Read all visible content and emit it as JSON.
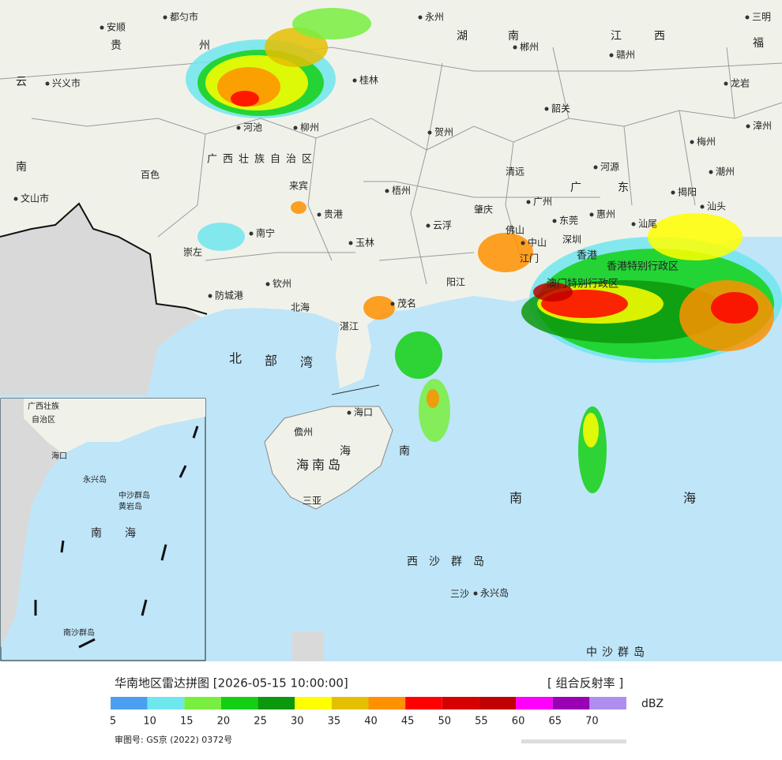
{
  "map": {
    "labels": [
      "安顺",
      "都匀市",
      "永州",
      "三明",
      "贵",
      "州",
      "湖",
      "南",
      "江",
      "西",
      "福",
      "郴州",
      "赣州",
      "云",
      "兴义市",
      "桂林",
      "龙岩",
      "河池",
      "柳州",
      "韶关",
      "漳州",
      "贺州",
      "梅州",
      "南",
      "百色",
      "广西壮族自治区",
      "清远",
      "河源",
      "潮州",
      "来宾",
      "梧州",
      "广",
      "东",
      "揭阳",
      "文山市",
      "贵港",
      "广州",
      "肇庆",
      "东莞",
      "惠州",
      "汕头",
      "南宁",
      "云浮",
      "佛山",
      "玉林",
      "深圳",
      "汕尾",
      "崇左",
      "中山",
      "香港",
      "香港特别行政区",
      "钦州",
      "江门",
      "阳江",
      "澳门特别行政区",
      "防城港",
      "北海",
      "茂名",
      "湛江",
      "北",
      "部",
      "湾",
      "海口",
      "儋州",
      "海",
      "南",
      "海南岛",
      "三亚",
      "南",
      "海",
      "西沙群岛",
      "三沙",
      "永兴岛",
      "中沙群岛"
    ],
    "inset_labels": [
      "广西壮族",
      "自治区",
      "海口",
      "南",
      "海",
      "中沙群岛",
      "永兴岛",
      "黄岩岛",
      "南沙群岛"
    ]
  },
  "legend": {
    "title": "华南地区雷达拼图 [2026-05-15 10:00:00]",
    "product": "[ 组合反射率 ]",
    "unit": "dBZ",
    "scale": [
      {
        "value": 5,
        "color": "#4a9ff0"
      },
      {
        "value": 10,
        "color": "#6ee6ee"
      },
      {
        "value": 15,
        "color": "#78ee3e"
      },
      {
        "value": 20,
        "color": "#14d014"
      },
      {
        "value": 25,
        "color": "#0c980c"
      },
      {
        "value": 30,
        "color": "#ffff00"
      },
      {
        "value": 35,
        "color": "#e4c000"
      },
      {
        "value": 40,
        "color": "#ff9000"
      },
      {
        "value": 45,
        "color": "#ff0000"
      },
      {
        "value": 50,
        "color": "#d60000"
      },
      {
        "value": 55,
        "color": "#c00000"
      },
      {
        "value": 60,
        "color": "#ff00ff"
      },
      {
        "value": 65,
        "color": "#9a00b4"
      },
      {
        "value": 70,
        "color": "#ae8ff0"
      }
    ],
    "approval": "审图号: GS京 (2022) 0372号"
  }
}
